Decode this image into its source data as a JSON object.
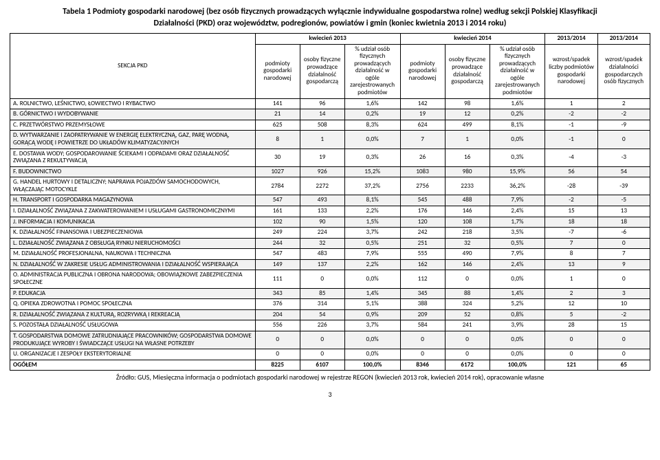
{
  "title": "Tabela 1 Podmioty gospodarki narodowej (bez osób fizycznych prowadzących wyłącznie indywidualne gospodarstwa rolne) według sekcji Polskiej Klasyfikacji",
  "subtitle": "Działalności (PKD) oraz województw, podregionów, powiatów i gmin (koniec kwietnia 2013 i 2014 roku)",
  "header": {
    "period1": "kwiecień 2013",
    "period2": "kwiecień 2014",
    "ratio_lbl": "2013/2014",
    "sekcja": "SEKCJA PKD",
    "c1": "podmioty gospodarki narodowej",
    "c2": "osoby fizyczne prowadzące działalność gospodarczą",
    "c3": "% udział osób fizycznych prowadzących działalność w ogóle zarejestrowanych podmiotów",
    "c4": "podmioty gospodarki narodowej",
    "c5": "osoby fizyczne prowadzące działalność gospodarczą",
    "c6": "% udział osób fizycznych prowadzących działalność w ogóle zarejestrowanych podmiotów",
    "c7": "wzrost/spadek liczby podmiotów gospodarki narodowej",
    "c8": "wzrost/spadek działalności gospodarczych osób fizycznych"
  },
  "rows": [
    {
      "alt": false,
      "label": "A. ROLNICTWO, LEŚNICTWO, ŁOWIECTWO I RYBACTWO",
      "v": [
        "141",
        "96",
        "1,6%",
        "142",
        "98",
        "1,6%",
        "1",
        "2"
      ]
    },
    {
      "alt": true,
      "label": "B. GÓRNICTWO I WYDOBYWANIE",
      "v": [
        "21",
        "14",
        "0,2%",
        "19",
        "12",
        "0,2%",
        "-2",
        "-2"
      ]
    },
    {
      "alt": false,
      "label": "C. PRZETWÓRSTWO PRZEMYSŁOWE",
      "v": [
        "625",
        "508",
        "8,3%",
        "624",
        "499",
        "8,1%",
        "-1",
        "-9"
      ]
    },
    {
      "alt": true,
      "label": "D. WYTWARZANIE I ZAOPATRYWANIE W ENERGIĘ ELEKTRYCZNĄ, GAZ, PARĘ WODNĄ, GORĄCĄ WODĘ I POWIETRZE DO UKŁADÓW KLIMATYZACYJNYCH",
      "v": [
        "8",
        "1",
        "0,0%",
        "7",
        "1",
        "0,0%",
        "-1",
        "0"
      ]
    },
    {
      "alt": false,
      "label": "E. DOSTAWA WODY; GOSPODAROWANIE ŚCIEKAMI I ODPADAMI ORAZ DZIAŁALNOŚĆ ZWIĄZANA Z REKULTYWACJĄ",
      "v": [
        "30",
        "19",
        "0,3%",
        "26",
        "16",
        "0,3%",
        "-4",
        "-3"
      ]
    },
    {
      "alt": true,
      "label": "F. BUDOWNICTWO",
      "v": [
        "1027",
        "926",
        "15,2%",
        "1083",
        "980",
        "15,9%",
        "56",
        "54"
      ]
    },
    {
      "alt": false,
      "label": "G. HANDEL HURTOWY I DETALICZNY; NAPRAWA POJAZDÓW SAMOCHODOWYCH, WŁĄCZAJĄC MOTOCYKLE",
      "v": [
        "2784",
        "2272",
        "37,2%",
        "2756",
        "2233",
        "36,2%",
        "-28",
        "-39"
      ]
    },
    {
      "alt": true,
      "label": "H. TRANSPORT I GOSPODARKA MAGAZYNOWA",
      "v": [
        "547",
        "493",
        "8,1%",
        "545",
        "488",
        "7,9%",
        "-2",
        "-5"
      ]
    },
    {
      "alt": false,
      "label": "I. DZIAŁALNOŚĆ ZWIĄZANA Z ZAKWATEROWANIEM I USŁUGAMI GASTRONOMICZNYMI",
      "v": [
        "161",
        "133",
        "2,2%",
        "176",
        "146",
        "2,4%",
        "15",
        "13"
      ]
    },
    {
      "alt": true,
      "label": "J. INFORMACJA I KOMUNIKACJA",
      "v": [
        "102",
        "90",
        "1,5%",
        "120",
        "108",
        "1,7%",
        "18",
        "18"
      ]
    },
    {
      "alt": false,
      "label": "K. DZIAŁALNOŚĆ FINANSOWA I UBEZPIECZENIOWA",
      "v": [
        "249",
        "224",
        "3,7%",
        "242",
        "218",
        "3,5%",
        "-7",
        "-6"
      ]
    },
    {
      "alt": true,
      "label": "L. DZIAŁALNOŚĆ ZWIĄZANA Z OBSŁUGĄ RYNKU NIERUCHOMOŚCI",
      "v": [
        "244",
        "32",
        "0,5%",
        "251",
        "32",
        "0,5%",
        "7",
        "0"
      ]
    },
    {
      "alt": false,
      "label": "M. DZIAŁALNOŚĆ PROFESJONALNA, NAUKOWA I TECHNICZNA",
      "v": [
        "547",
        "483",
        "7,9%",
        "555",
        "490",
        "7,9%",
        "8",
        "7"
      ]
    },
    {
      "alt": true,
      "label": "N. DZIAŁALNOŚĆ W ZAKRESIE USŁUG ADMINISTROWANIA I DZIAŁALNOŚĆ WSPIERAJĄCA",
      "v": [
        "149",
        "137",
        "2,2%",
        "162",
        "146",
        "2,4%",
        "13",
        "9"
      ]
    },
    {
      "alt": false,
      "label": "O. ADMINISTRACJA PUBLICZNA I OBRONA NARODOWA; OBOWIĄZKOWE ZABEZPIECZENIA SPOŁECZNE",
      "v": [
        "111",
        "0",
        "0,0%",
        "112",
        "0",
        "0,0%",
        "1",
        "0"
      ]
    },
    {
      "alt": true,
      "label": "P. EDUKACJA",
      "v": [
        "343",
        "85",
        "1,4%",
        "345",
        "88",
        "1,4%",
        "2",
        "3"
      ]
    },
    {
      "alt": false,
      "label": "Q. OPIEKA ZDROWOTNA I POMOC SPOŁECZNA",
      "v": [
        "376",
        "314",
        "5,1%",
        "388",
        "324",
        "5,2%",
        "12",
        "10"
      ]
    },
    {
      "alt": true,
      "label": "R. DZIAŁALNOŚĆ ZWIĄZANA Z KULTURĄ, ROZRYWKĄ I REKREACJĄ",
      "v": [
        "204",
        "54",
        "0,9%",
        "209",
        "52",
        "0,8%",
        "5",
        "-2"
      ]
    },
    {
      "alt": false,
      "label": "S. POZOSTAŁA DZIAŁALNOŚĆ USŁUGOWA",
      "v": [
        "556",
        "226",
        "3,7%",
        "584",
        "241",
        "3,9%",
        "28",
        "15"
      ]
    },
    {
      "alt": true,
      "label": "T. GOSPODARSTWA DOMOWE ZATRUDNIAJĄCE PRACOWNIKÓW; GOSPODARSTWA DOMOWE PRODUKUJĄCE WYROBY I ŚWIADCZĄCE USŁUGI NA WŁASNE POTRZEBY",
      "v": [
        "0",
        "0",
        "0,0%",
        "0",
        "0",
        "0,0%",
        "0",
        "0"
      ]
    },
    {
      "alt": false,
      "label": "U. ORGANIZACJE I ZESPOŁY EKSTERYTORIALNE",
      "v": [
        "0",
        "0",
        "0,0%",
        "0",
        "0",
        "0,0%",
        "0",
        "0"
      ]
    }
  ],
  "total": {
    "label": "OGÓŁEM",
    "v": [
      "8225",
      "6107",
      "100,0%",
      "8346",
      "6172",
      "100,0%",
      "121",
      "65"
    ]
  },
  "source": "Źródło: GUS, Miesięczna informacja o podmiotach gospodarki narodowej w rejestrze REGON (kwiecień 2013 rok, kwiecień 2014 rok), opracowanie własne",
  "page_number": "3"
}
